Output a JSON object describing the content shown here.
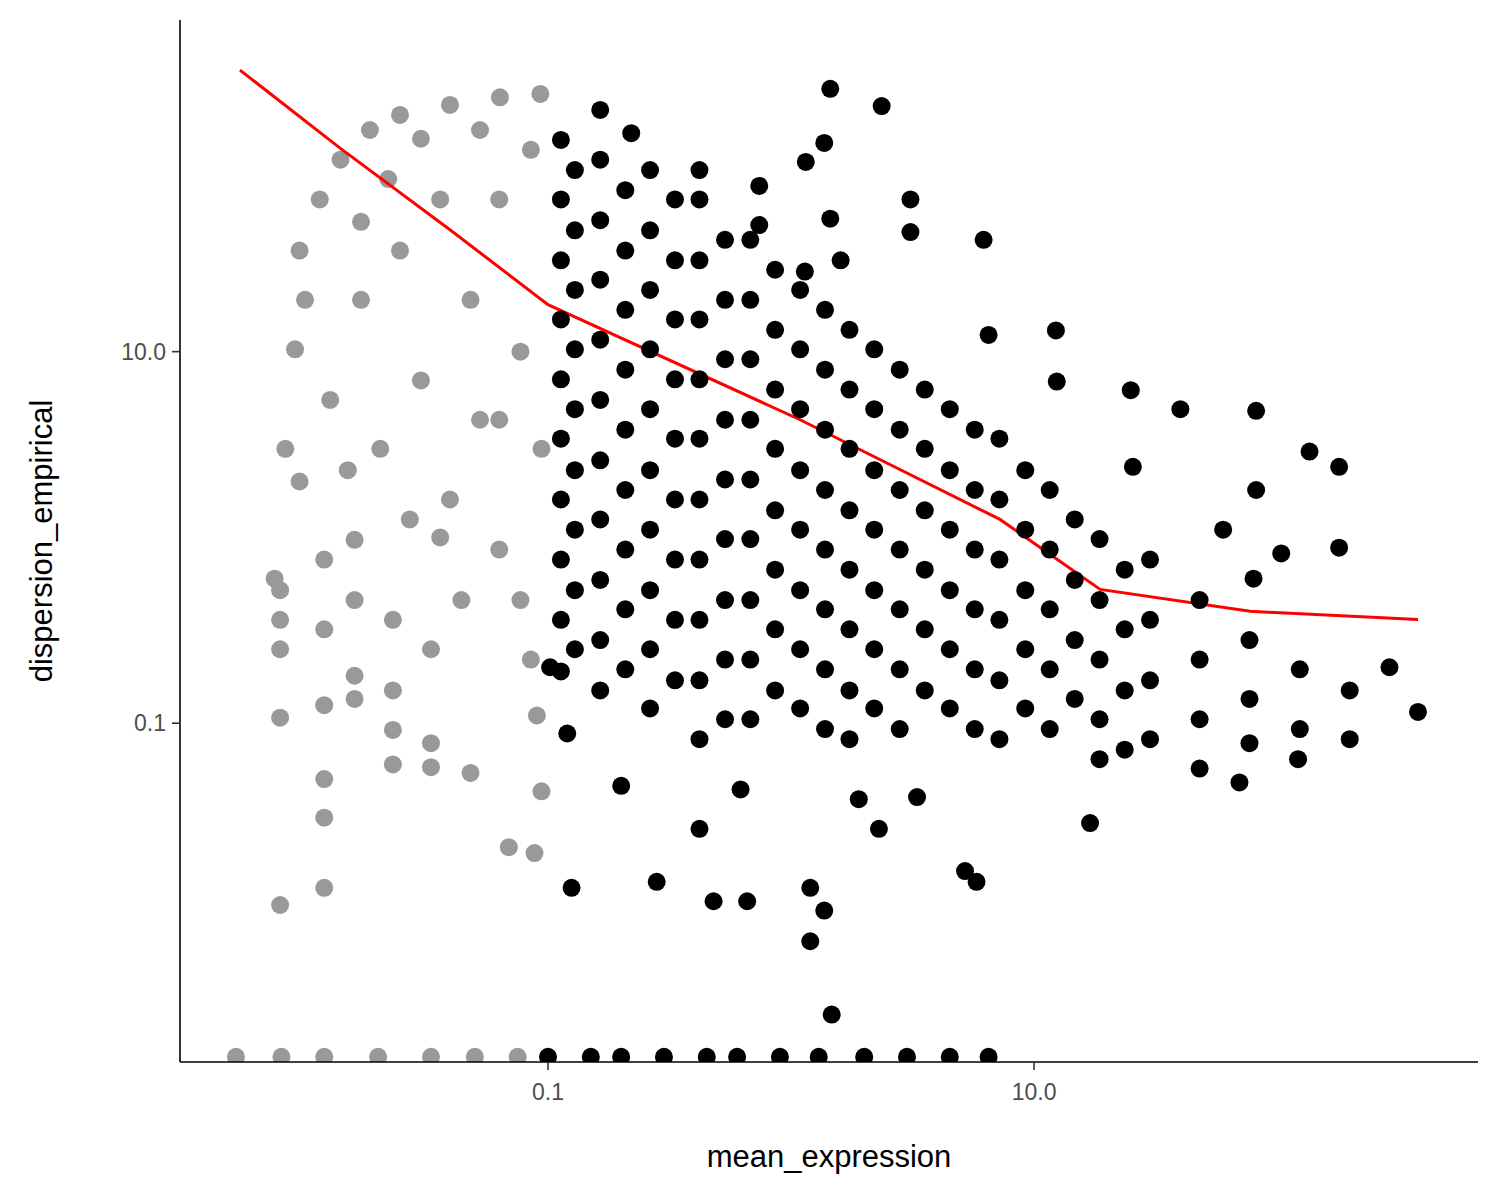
{
  "chart_data": {
    "type": "scatter",
    "x_label": "mean_expression",
    "y_label": "dispersion_empirical",
    "log": true,
    "grid": false,
    "xlim": [
      0.00306,
      671
    ],
    "ylim": [
      0.0015,
      610
    ],
    "xticks": [
      0.1,
      {
        "value": 10,
        "label": "10.0"
      }
    ],
    "yticks": [
      0.1,
      {
        "value": 10,
        "label": "10.0"
      }
    ],
    "series": [
      {
        "type": "scatter",
        "marker": "circle",
        "color": "#999999",
        "x": [
          0.0052,
          0.008,
          0.012,
          0.02,
          0.033,
          0.05,
          0.075,
          0.0079,
          0.0079,
          0.0079,
          0.0079,
          0.0079,
          0.012,
          0.012,
          0.012,
          0.012,
          0.012,
          0.012,
          0.016,
          0.016,
          0.016,
          0.016,
          0.023,
          0.023,
          0.023,
          0.023,
          0.033,
          0.033,
          0.033,
          0.048,
          0.069,
          0.088,
          0.094,
          0.09,
          0.0075,
          0.0083,
          0.0091,
          0.0095,
          0.0115,
          0.014,
          0.0185,
          0.0246,
          0.0395,
          0.0634,
          0.093,
          0.0127,
          0.017,
          0.0204,
          0.0246,
          0.03,
          0.036,
          0.0395,
          0.048,
          0.0525,
          0.063,
          0.063,
          0.077,
          0.085,
          0.094,
          0.077,
          0.044,
          0.027,
          0.015,
          0.01,
          0.022,
          0.03,
          0.0525,
          0.017,
          0.063,
          0.036,
          0.0095,
          0.085
        ],
        "values": [
          0.0016,
          0.0016,
          0.0016,
          0.0016,
          0.0016,
          0.0016,
          0.0016,
          0.52,
          0.36,
          0.25,
          0.107,
          0.0105,
          0.76,
          0.32,
          0.125,
          0.05,
          0.031,
          0.013,
          0.97,
          0.46,
          0.18,
          0.135,
          0.36,
          0.15,
          0.092,
          0.06,
          0.25,
          0.078,
          0.058,
          0.054,
          0.0215,
          0.02,
          0.043,
          0.11,
          0.6,
          3.0,
          10.3,
          35,
          66,
          108,
          156,
          188,
          213,
          234,
          244,
          5.5,
          19,
          3.0,
          35,
          7,
          66,
          1.6,
          19,
          4.3,
          66,
          0.86,
          10,
          122,
          3.0,
          0.46,
          0.46,
          1.25,
          2.3,
          19,
          85,
          140,
          156,
          50,
          4.3,
          1.0,
          2.0,
          0.22
        ]
      },
      {
        "type": "line",
        "line_style": "solid",
        "color": "#ff0000",
        "x": [
          0.0054,
          0.0139,
          0.0395,
          0.1,
          1.09,
          7.24,
          18.7,
          77.4,
          380
        ],
        "values": [
          328,
          125,
          45.3,
          17.9,
          4.3,
          1.25,
          0.525,
          0.4,
          0.362
        ]
      },
      {
        "type": "scatter",
        "marker": "circle",
        "color": "#000000",
        "x": [
          0.1,
          0.15,
          0.2,
          0.3,
          0.45,
          0.6,
          0.9,
          1.3,
          2,
          3,
          4.5,
          6.5,
          1.45,
          2.36,
          1.37,
          0.164,
          0.22,
          3.1,
          6.2,
          3.1,
          1.15,
          0.42,
          0.74,
          1.45,
          1.6,
          1.14,
          0.74,
          6.5,
          12.3,
          12.4,
          25,
          40,
          82,
          25.5,
          136,
          180,
          82,
          60,
          80,
          104,
          180,
          290,
          380,
          122,
          70,
          17,
          5.2,
          5.8,
          1.2,
          1.37,
          1.2,
          1.47,
          0.125,
          0.28,
          0.48,
          0.66,
          0.42,
          2.3,
          3.3,
          1.9,
          0.62,
          0.2,
          0.12,
          0.102,
          0.113,
          0.113,
          0.113,
          0.113,
          0.113,
          0.113,
          0.113,
          0.113,
          0.113,
          0.113,
          0.164,
          0.164,
          0.164,
          0.164,
          0.164,
          0.164,
          0.164,
          0.164,
          0.164,
          0.164,
          0.263,
          0.263,
          0.263,
          0.263,
          0.263,
          0.263,
          0.263,
          0.263,
          0.263,
          0.263,
          0.42,
          0.42,
          0.42,
          0.42,
          0.42,
          0.42,
          0.42,
          0.42,
          0.42,
          0.42,
          0.68,
          0.68,
          0.68,
          0.68,
          0.68,
          0.68,
          0.68,
          0.68,
          0.68,
          1.09,
          1.09,
          1.09,
          1.09,
          1.09,
          1.09,
          1.09,
          1.09,
          1.74,
          1.74,
          1.74,
          1.74,
          1.74,
          1.74,
          1.74,
          1.74,
          2.8,
          2.8,
          2.8,
          2.8,
          2.8,
          2.8,
          2.8,
          4.5,
          4.5,
          4.5,
          4.5,
          4.5,
          4.5,
          7.2,
          7.2,
          7.2,
          7.2,
          7.2,
          7.2,
          11.6,
          11.6,
          11.6,
          11.6,
          11.6,
          18.6,
          18.6,
          18.6,
          18.6,
          18.6,
          30,
          30,
          30,
          30,
          48,
          48,
          48,
          48,
          77,
          77,
          77,
          124,
          124,
          199,
          199,
          0.129,
          0.129,
          0.129,
          0.129,
          0.129,
          0.129,
          0.129,
          0.129,
          0.129,
          0.208,
          0.208,
          0.208,
          0.208,
          0.208,
          0.208,
          0.208,
          0.208,
          0.208,
          0.333,
          0.333,
          0.333,
          0.333,
          0.333,
          0.333,
          0.333,
          0.333,
          0.333,
          0.535,
          0.535,
          0.535,
          0.535,
          0.535,
          0.535,
          0.535,
          0.535,
          0.535,
          0.86,
          0.86,
          0.86,
          0.86,
          0.86,
          0.86,
          0.86,
          0.86,
          1.38,
          1.38,
          1.38,
          1.38,
          1.38,
          1.38,
          1.38,
          1.38,
          2.2,
          2.2,
          2.2,
          2.2,
          2.2,
          2.2,
          2.2,
          3.55,
          3.55,
          3.55,
          3.55,
          3.55,
          3.55,
          5.7,
          5.7,
          5.7,
          5.7,
          5.7,
          5.7,
          9.2,
          9.2,
          9.2,
          9.2,
          9.2,
          14.7,
          14.7,
          14.7,
          14.7,
          23.6,
          23.6,
          23.6,
          23.6
        ],
        "values": [
          0.0016,
          0.0016,
          0.0016,
          0.0016,
          0.0016,
          0.0016,
          0.0016,
          0.0016,
          0.0016,
          0.0016,
          0.0016,
          0.0016,
          260,
          210,
          133,
          200,
          150,
          66,
          40,
          44,
          105,
          95,
          78,
          52,
          31,
          27,
          48,
          12.3,
          13,
          6.9,
          6.2,
          4.9,
          4.8,
          2.4,
          2.9,
          2.4,
          1.8,
          1.1,
          0.6,
          0.82,
          0.88,
          0.2,
          0.115,
          0.064,
          0.048,
          0.029,
          0.016,
          0.014,
          0.013,
          0.0098,
          0.0067,
          0.0027,
          0.013,
          0.014,
          0.011,
          0.011,
          0.027,
          0.027,
          0.04,
          0.039,
          0.044,
          0.046,
          0.088,
          0.2,
          138,
          66,
          31,
          14.9,
          7.1,
          3.4,
          1.6,
          0.76,
          0.36,
          0.19,
          108,
          51,
          24.4,
          11.6,
          5.5,
          2.6,
          1.25,
          0.59,
          0.28,
          0.15,
          95,
          45,
          21.5,
          10.3,
          4.9,
          2.3,
          1.1,
          0.52,
          0.25,
          0.12,
          66,
          31,
          14.9,
          7.1,
          3.4,
          1.6,
          0.76,
          0.36,
          0.17,
          0.082,
          40,
          19,
          9.1,
          4.3,
          2.05,
          0.98,
          0.46,
          0.22,
          0.105,
          21.5,
          10.3,
          4.9,
          2.3,
          1.1,
          0.52,
          0.25,
          0.12,
          13.1,
          6.25,
          3.0,
          1.4,
          0.67,
          0.32,
          0.15,
          0.082,
          8.0,
          3.8,
          1.8,
          0.86,
          0.41,
          0.195,
          0.093,
          4.9,
          2.3,
          1.1,
          0.52,
          0.25,
          0.12,
          3.4,
          1.6,
          0.76,
          0.36,
          0.17,
          0.082,
          1.8,
          0.86,
          0.41,
          0.195,
          0.093,
          0.98,
          0.46,
          0.22,
          0.105,
          0.064,
          0.76,
          0.36,
          0.17,
          0.082,
          0.46,
          0.22,
          0.105,
          0.057,
          0.28,
          0.135,
          0.078,
          0.195,
          0.093,
          0.15,
          0.082,
          95,
          45,
          21.5,
          10.3,
          4.9,
          2.3,
          1.1,
          0.52,
          0.25,
          74,
          35,
          16.8,
          8.0,
          3.8,
          1.8,
          0.86,
          0.41,
          0.195,
          66,
          31,
          14.9,
          7.1,
          3.4,
          1.6,
          0.76,
          0.36,
          0.17,
          40,
          19,
          9.1,
          4.3,
          2.05,
          0.98,
          0.46,
          0.22,
          0.105,
          27.6,
          13.1,
          6.25,
          3.0,
          1.4,
          0.67,
          0.32,
          0.15,
          16.8,
          8.0,
          3.8,
          1.8,
          0.86,
          0.41,
          0.195,
          0.093,
          10.3,
          4.9,
          2.3,
          1.1,
          0.52,
          0.25,
          0.12,
          6.25,
          3.0,
          1.4,
          0.67,
          0.32,
          0.15,
          3.8,
          1.8,
          0.86,
          0.41,
          0.195,
          0.093,
          2.3,
          1.1,
          0.52,
          0.25,
          0.12,
          1.25,
          0.59,
          0.28,
          0.135,
          0.67,
          0.32,
          0.15,
          0.072
        ]
      }
    ]
  }
}
